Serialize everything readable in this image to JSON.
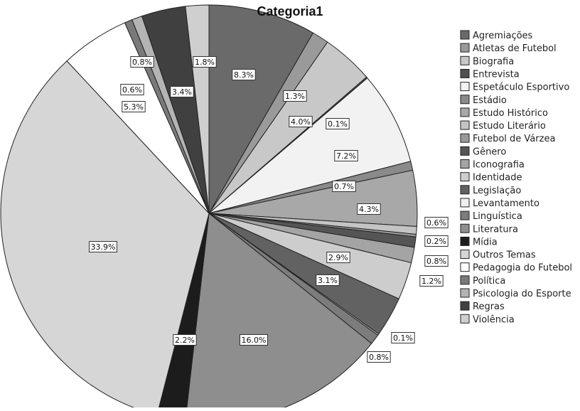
{
  "chart_data": {
    "type": "pie",
    "title": "Categoria1",
    "categories": [
      "Agremiações",
      "Atletas de Futebol",
      "Biografia",
      "Entrevista",
      "Espetáculo Esportivo",
      "Estádio",
      "Estudo Histórico",
      "Estudo Literário",
      "Futebol de Várzea",
      "Gênero",
      "Iconografia",
      "Identidade",
      "Legislação",
      "Levantamento",
      "Linguística",
      "Literatura",
      "Mídia",
      "Outros Temas",
      "Pedagogia do Futebol",
      "Política",
      "Psicologia do Esporte",
      "Regras",
      "Violência"
    ],
    "values": [
      8.3,
      1.3,
      4.0,
      0.1,
      7.2,
      0.7,
      4.3,
      0.6,
      0.2,
      0.8,
      1.2,
      2.9,
      3.1,
      0.1,
      0.8,
      16.0,
      2.2,
      33.9,
      5.3,
      0.6,
      0.8,
      3.4,
      1.8
    ],
    "labels": [
      "8.3%",
      "1.3%",
      "4.0%",
      "0.1%",
      "7.2%",
      "0.7%",
      "4.3%",
      "0.6%",
      "0.2%",
      "0.8%",
      "1.2%",
      "2.9%",
      "3.1%",
      "0.1%",
      "0.8%",
      "16.0%",
      "2.2%",
      "33.9%",
      "5.3%",
      "0.6%",
      "0.8%",
      "3.4%",
      "1.8%"
    ],
    "slice_order": "clockwise from 12 o'clock, legend order",
    "colors": [
      "#6a6a6a",
      "#9a9a9a",
      "#c8c8c8",
      "#505050",
      "#f2f2f2",
      "#8a8a8a",
      "#a8a8a8",
      "#c4c4c4",
      "#999999",
      "#555555",
      "#a4a4a4",
      "#cdcdcd",
      "#626262",
      "#f0f0f0",
      "#7c7c7c",
      "#8e8e8e",
      "#1c1c1c",
      "#d6d6d6",
      "#ffffff",
      "#7a7a7a",
      "#b4b4b4",
      "#404040",
      "#cfcfcf"
    ],
    "legend_position": "right",
    "legend": [
      "Agremiações",
      "Atletas de Futebol",
      "Biografia",
      "Entrevista",
      "Espetáculo Esportivo",
      "Estádio",
      "Estudo Histórico",
      "Estudo Literário",
      "Futebol de Várzea",
      "Gênero",
      "Iconografia",
      "Identidade",
      "Legislação",
      "Levantamento",
      "Linguística",
      "Literatura",
      "Mídia",
      "Outros Temas",
      "Pedagogia do Futebol",
      "Política",
      "Psicologia do Esporte",
      "Regras",
      "Violência"
    ]
  }
}
